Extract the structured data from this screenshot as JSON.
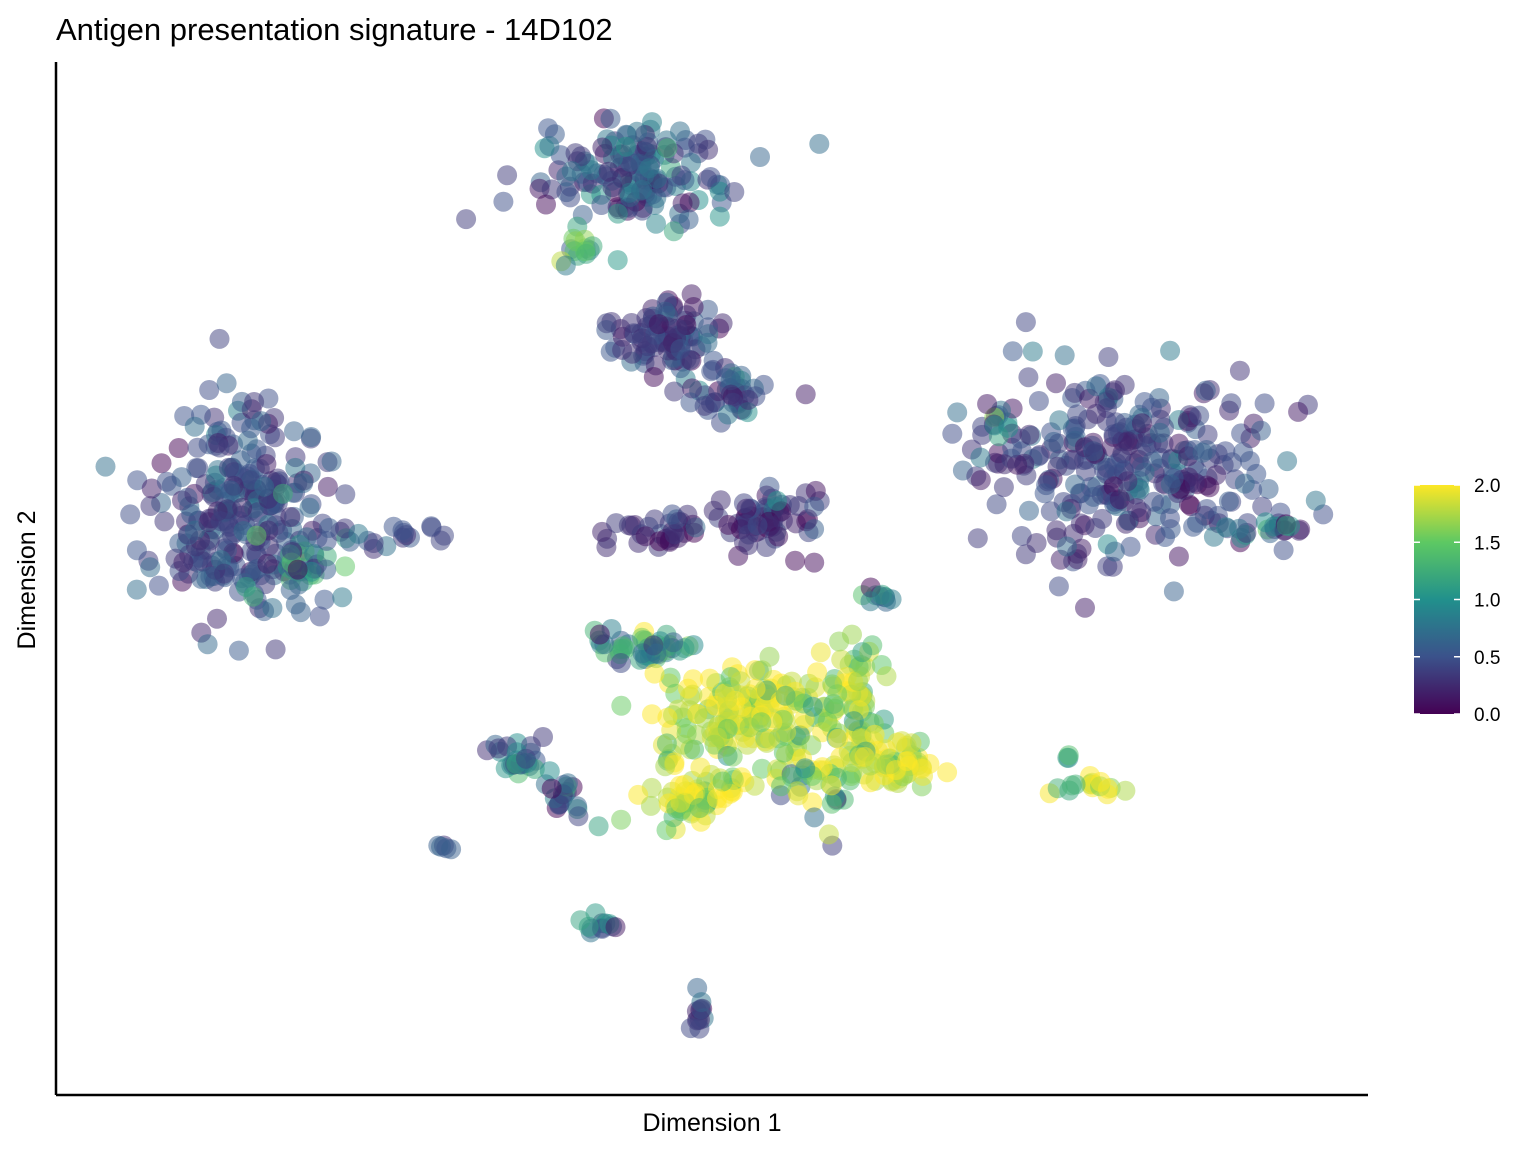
{
  "chart_data": {
    "type": "scatter",
    "title": "Antigen presentation signature - 14D102",
    "xlabel": "Dimension 1",
    "ylabel": "Dimension 2",
    "xlim": [
      0,
      100
    ],
    "ylim": [
      0,
      100
    ],
    "x_ticks_shown": false,
    "y_ticks_shown": false,
    "grid": false,
    "color_scale": {
      "name": "viridis",
      "min": 0.0,
      "max": 2.0,
      "ticks": [
        "0.0",
        "0.5",
        "1.0",
        "1.5",
        "2.0"
      ],
      "colors": [
        "#440154",
        "#3B528B",
        "#21908C",
        "#5DC863",
        "#FDE725"
      ]
    },
    "legend_position": "right",
    "point_opacity": 0.5,
    "clusters": [
      {
        "center": [
          13.5,
          56.5
        ],
        "spread": [
          6.0,
          9.5
        ],
        "n": 260,
        "mean": 0.45,
        "sd": 0.2
      },
      {
        "center": [
          18.5,
          51.5
        ],
        "spread": [
          2.5,
          4.0
        ],
        "n": 35,
        "mean": 0.9,
        "sd": 0.45
      },
      {
        "center": [
          25.5,
          54.0
        ],
        "spread": [
          3.5,
          1.5
        ],
        "n": 18,
        "mean": 0.4,
        "sd": 0.2
      },
      {
        "center": [
          44.5,
          90.5
        ],
        "spread": [
          7.5,
          4.5
        ],
        "n": 150,
        "mean": 0.55,
        "sd": 0.3
      },
      {
        "center": [
          40.5,
          82.0
        ],
        "spread": [
          2.0,
          2.5
        ],
        "n": 14,
        "mean": 1.3,
        "sd": 0.45
      },
      {
        "center": [
          47.0,
          74.0
        ],
        "spread": [
          4.0,
          3.5
        ],
        "n": 90,
        "mean": 0.35,
        "sd": 0.2
      },
      {
        "center": [
          51.5,
          68.5
        ],
        "spread": [
          3.5,
          2.5
        ],
        "n": 40,
        "mean": 0.5,
        "sd": 0.25
      },
      {
        "center": [
          46.5,
          55.0
        ],
        "spread": [
          4.0,
          1.5
        ],
        "n": 30,
        "mean": 0.3,
        "sd": 0.15
      },
      {
        "center": [
          54.5,
          55.5
        ],
        "spread": [
          4.0,
          3.0
        ],
        "n": 65,
        "mean": 0.35,
        "sd": 0.2
      },
      {
        "center": [
          83.0,
          61.0
        ],
        "spread": [
          10.5,
          8.5
        ],
        "n": 300,
        "mean": 0.4,
        "sd": 0.2
      },
      {
        "center": [
          94.5,
          55.0
        ],
        "spread": [
          3.5,
          1.0
        ],
        "n": 18,
        "mean": 0.5,
        "sd": 0.6
      },
      {
        "center": [
          74.0,
          66.0
        ],
        "spread": [
          2.5,
          2.0
        ],
        "n": 12,
        "mean": 0.5,
        "sd": 0.45
      },
      {
        "center": [
          45.5,
          43.0
        ],
        "spread": [
          4.5,
          2.0
        ],
        "n": 50,
        "mean": 1.0,
        "sd": 0.5
      },
      {
        "center": [
          53.5,
          36.0
        ],
        "spread": [
          6.5,
          4.5
        ],
        "n": 180,
        "mean": 1.8,
        "sd": 0.3
      },
      {
        "center": [
          61.5,
          37.5
        ],
        "spread": [
          3.0,
          6.0
        ],
        "n": 60,
        "mean": 1.75,
        "sd": 0.35
      },
      {
        "center": [
          49.0,
          28.0
        ],
        "spread": [
          3.0,
          2.5
        ],
        "n": 60,
        "mean": 1.85,
        "sd": 0.3
      },
      {
        "center": [
          64.5,
          31.0
        ],
        "spread": [
          3.5,
          2.5
        ],
        "n": 60,
        "mean": 1.85,
        "sd": 0.3
      },
      {
        "center": [
          58.5,
          29.0
        ],
        "spread": [
          2.5,
          3.5
        ],
        "n": 30,
        "mean": 1.4,
        "sd": 0.6
      },
      {
        "center": [
          35.5,
          31.5
        ],
        "spread": [
          2.0,
          2.0
        ],
        "n": 28,
        "mean": 0.75,
        "sd": 0.35
      },
      {
        "center": [
          39.0,
          27.5
        ],
        "spread": [
          1.5,
          2.0
        ],
        "n": 18,
        "mean": 0.75,
        "sd": 0.35
      },
      {
        "center": [
          29.5,
          23.0
        ],
        "spread": [
          0.6,
          0.3
        ],
        "n": 5,
        "mean": 0.5,
        "sd": 0.2
      },
      {
        "center": [
          42.0,
          15.0
        ],
        "spread": [
          2.0,
          0.6
        ],
        "n": 12,
        "mean": 0.7,
        "sd": 0.3
      },
      {
        "center": [
          49.5,
          6.5
        ],
        "spread": [
          0.7,
          2.2
        ],
        "n": 12,
        "mean": 0.4,
        "sd": 0.2
      },
      {
        "center": [
          81.0,
          29.0
        ],
        "spread": [
          4.0,
          0.8
        ],
        "n": 16,
        "mean": 1.7,
        "sd": 0.45
      },
      {
        "center": [
          78.5,
          32.0
        ],
        "spread": [
          0.3,
          0.3
        ],
        "n": 3,
        "mean": 1.0,
        "sd": 0.2
      },
      {
        "center": [
          64.0,
          48.0
        ],
        "spread": [
          1.2,
          1.5
        ],
        "n": 10,
        "mean": 1.3,
        "sd": 0.7
      }
    ]
  }
}
